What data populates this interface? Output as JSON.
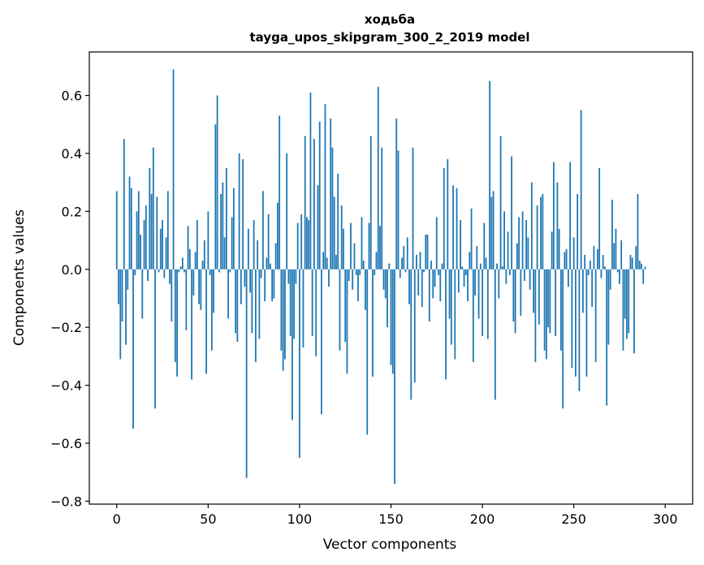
{
  "chart_data": {
    "type": "bar",
    "title": "ходьба",
    "subtitle": "tayga_upos_skipgram_300_2_2019 model",
    "xlabel": "Vector components",
    "ylabel": "Components values",
    "xlim": [
      -15,
      315
    ],
    "ylim": [
      -0.81,
      0.75
    ],
    "xticks": [
      0,
      50,
      100,
      150,
      200,
      250,
      300
    ],
    "xtick_labels": [
      "0",
      "50",
      "100",
      "150",
      "200",
      "250",
      "300"
    ],
    "yticks": [
      -0.8,
      -0.6,
      -0.4,
      -0.2,
      0.0,
      0.2,
      0.4,
      0.6
    ],
    "ytick_labels": [
      "−0.8",
      "−0.6",
      "−0.4",
      "−0.2",
      "0.0",
      "0.2",
      "0.4",
      "0.6"
    ],
    "grid": false,
    "bar_color": "#1f77b4",
    "x_start": 0,
    "values": [
      0.27,
      -0.12,
      -0.31,
      -0.18,
      0.45,
      -0.26,
      -0.07,
      0.32,
      0.28,
      -0.55,
      -0.02,
      0.2,
      0.27,
      0.12,
      -0.17,
      0.17,
      0.22,
      -0.04,
      0.35,
      0.26,
      0.42,
      -0.48,
      0.25,
      -0.01,
      0.14,
      0.17,
      -0.03,
      0.11,
      0.27,
      -0.05,
      -0.18,
      0.69,
      -0.32,
      -0.37,
      -0.01,
      0.01,
      0.04,
      -0.01,
      -0.21,
      0.15,
      0.07,
      -0.38,
      -0.09,
      0.06,
      0.17,
      -0.12,
      -0.14,
      0.03,
      0.1,
      -0.36,
      0.2,
      -0.02,
      -0.28,
      -0.15,
      0.5,
      0.6,
      -0.01,
      0.26,
      0.3,
      0.11,
      0.35,
      -0.17,
      -0.01,
      0.18,
      0.28,
      -0.22,
      -0.25,
      0.4,
      -0.12,
      0.38,
      -0.06,
      -0.72,
      0.14,
      -0.08,
      -0.22,
      0.17,
      -0.32,
      0.1,
      -0.24,
      -0.03,
      0.27,
      -0.11,
      0.04,
      0.19,
      0.02,
      -0.11,
      -0.1,
      0.09,
      0.23,
      0.53,
      -0.28,
      -0.35,
      -0.31,
      0.4,
      -0.05,
      -0.23,
      -0.52,
      -0.24,
      -0.05,
      0.16,
      -0.65,
      0.19,
      -0.27,
      0.46,
      0.18,
      0.17,
      0.61,
      -0.23,
      0.45,
      -0.3,
      0.29,
      0.51,
      -0.5,
      0.06,
      0.57,
      0.04,
      -0.06,
      0.52,
      0.42,
      0.25,
      0.05,
      0.33,
      -0.28,
      0.22,
      0.14,
      -0.25,
      -0.36,
      -0.04,
      0.16,
      -0.07,
      0.09,
      -0.02,
      -0.11,
      -0.02,
      0.18,
      0.03,
      -0.14,
      -0.57,
      0.16,
      0.46,
      -0.37,
      -0.02,
      0.06,
      0.63,
      0.15,
      0.42,
      -0.07,
      -0.1,
      -0.2,
      0.02,
      -0.33,
      -0.36,
      -0.74,
      0.52,
      0.41,
      -0.03,
      0.04,
      0.08,
      -0.01,
      0.11,
      -0.12,
      -0.45,
      0.42,
      -0.39,
      0.05,
      -0.09,
      0.06,
      -0.13,
      -0.01,
      0.12,
      0.12,
      -0.18,
      0.03,
      -0.1,
      -0.06,
      0.18,
      -0.02,
      -0.11,
      0.02,
      0.35,
      -0.38,
      0.38,
      -0.17,
      -0.26,
      0.29,
      -0.31,
      0.28,
      -0.08,
      0.17,
      0.01,
      -0.06,
      -0.02,
      -0.11,
      0.06,
      0.21,
      -0.32,
      -0.09,
      0.08,
      -0.17,
      0.02,
      -0.23,
      0.16,
      0.04,
      -0.24,
      0.65,
      0.25,
      0.27,
      -0.45,
      0.02,
      -0.1,
      0.46,
      0.01,
      0.2,
      -0.05,
      0.13,
      -0.02,
      0.39,
      -0.18,
      -0.22,
      0.09,
      0.18,
      -0.16,
      0.2,
      -0.04,
      0.17,
      0.11,
      -0.07,
      0.3,
      -0.15,
      -0.32,
      0.22,
      -0.19,
      0.25,
      0.26,
      -0.28,
      -0.31,
      -0.2,
      -0.22,
      0.13,
      0.37,
      -0.23,
      0.3,
      0.14,
      -0.28,
      -0.48,
      0.06,
      0.07,
      -0.06,
      0.37,
      -0.34,
      0.11,
      -0.37,
      0.26,
      -0.42,
      0.55,
      -0.15,
      0.05,
      -0.37,
      -0.02,
      0.03,
      -0.13,
      0.08,
      -0.32,
      0.07,
      0.35,
      -0.03,
      0.05,
      0.01,
      -0.47,
      -0.26,
      -0.07,
      0.24,
      0.09,
      0.14,
      -0.01,
      -0.05,
      0.1,
      -0.28,
      -0.17,
      -0.24,
      -0.22,
      0.05,
      0.04,
      -0.29,
      0.08,
      0.26,
      0.03,
      0.02,
      -0.05,
      0.01
    ]
  }
}
